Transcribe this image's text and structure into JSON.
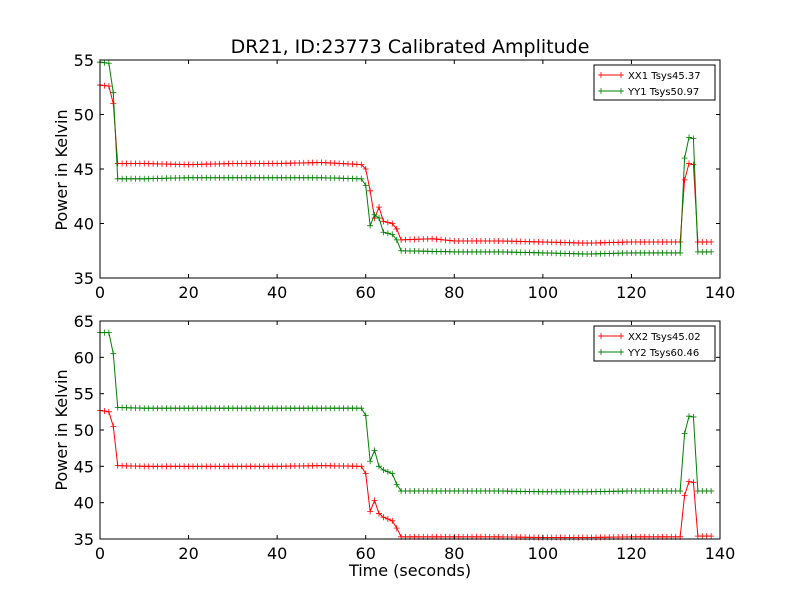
{
  "chart_data": [
    {
      "type": "line",
      "title": "DR21, ID:23773 Calibrated Amplitude",
      "xlabel": "",
      "ylabel": "Power in Kelvin",
      "xlim": [
        0,
        140
      ],
      "ylim": [
        35,
        55
      ],
      "xticks": [
        0,
        20,
        40,
        60,
        80,
        100,
        120,
        140
      ],
      "yticks": [
        35,
        40,
        45,
        50,
        55
      ],
      "grid": false,
      "legend_position": "top-right",
      "series": [
        {
          "name": "XX1 Tsys45.37",
          "color": "#ff0000",
          "points": [
            [
              0,
              52.7
            ],
            [
              2,
              52.6
            ],
            [
              3,
              51
            ],
            [
              4,
              45.5
            ],
            [
              10,
              45.5
            ],
            [
              20,
              45.4
            ],
            [
              30,
              45.5
            ],
            [
              40,
              45.5
            ],
            [
              50,
              45.6
            ],
            [
              59,
              45.4
            ],
            [
              60,
              45
            ],
            [
              61,
              43
            ],
            [
              62,
              40.5
            ],
            [
              63,
              41.5
            ],
            [
              64,
              40.2
            ],
            [
              66,
              40
            ],
            [
              67,
              39.5
            ],
            [
              68,
              38.5
            ],
            [
              75,
              38.6
            ],
            [
              80,
              38.4
            ],
            [
              90,
              38.4
            ],
            [
              100,
              38.3
            ],
            [
              110,
              38.2
            ],
            [
              120,
              38.3
            ],
            [
              131,
              38.3
            ],
            [
              132,
              44
            ],
            [
              133,
              45.5
            ],
            [
              134,
              45.4
            ],
            [
              135,
              38.3
            ],
            [
              138,
              38.3
            ]
          ]
        },
        {
          "name": "YY1 Tsys50.97",
          "color": "#008000",
          "points": [
            [
              0,
              54.8
            ],
            [
              2,
              54.7
            ],
            [
              3,
              52
            ],
            [
              4,
              44.1
            ],
            [
              10,
              44.1
            ],
            [
              20,
              44.2
            ],
            [
              30,
              44.2
            ],
            [
              40,
              44.2
            ],
            [
              50,
              44.2
            ],
            [
              59,
              44.1
            ],
            [
              60,
              43.5
            ],
            [
              61,
              39.8
            ],
            [
              62,
              40.8
            ],
            [
              63,
              40.5
            ],
            [
              64,
              39.2
            ],
            [
              66,
              39
            ],
            [
              67,
              38.5
            ],
            [
              68,
              37.5
            ],
            [
              80,
              37.4
            ],
            [
              90,
              37.4
            ],
            [
              100,
              37.3
            ],
            [
              110,
              37.2
            ],
            [
              120,
              37.3
            ],
            [
              131,
              37.3
            ],
            [
              132,
              46
            ],
            [
              133,
              47.9
            ],
            [
              134,
              47.8
            ],
            [
              135,
              37.4
            ],
            [
              138,
              37.4
            ]
          ]
        }
      ]
    },
    {
      "type": "line",
      "title": "",
      "xlabel": "Time (seconds)",
      "ylabel": "Power in Kelvin",
      "xlim": [
        0,
        140
      ],
      "ylim": [
        35,
        65
      ],
      "xticks": [
        0,
        20,
        40,
        60,
        80,
        100,
        120,
        140
      ],
      "yticks": [
        35,
        40,
        45,
        50,
        55,
        60,
        65
      ],
      "grid": false,
      "legend_position": "top-right",
      "series": [
        {
          "name": "XX2 Tsys45.02",
          "color": "#ff0000",
          "points": [
            [
              0,
              52.7
            ],
            [
              2,
              52.5
            ],
            [
              3,
              50.5
            ],
            [
              4,
              45.1
            ],
            [
              10,
              45
            ],
            [
              20,
              45
            ],
            [
              30,
              45
            ],
            [
              40,
              45
            ],
            [
              50,
              45.1
            ],
            [
              59,
              45
            ],
            [
              60,
              44
            ],
            [
              61,
              38.8
            ],
            [
              62,
              40.3
            ],
            [
              63,
              38.5
            ],
            [
              64,
              38
            ],
            [
              66,
              37.5
            ],
            [
              67,
              36.5
            ],
            [
              68,
              35.3
            ],
            [
              80,
              35.3
            ],
            [
              90,
              35.3
            ],
            [
              100,
              35.2
            ],
            [
              110,
              35.2
            ],
            [
              120,
              35.3
            ],
            [
              131,
              35.3
            ],
            [
              132,
              41
            ],
            [
              133,
              42.9
            ],
            [
              134,
              42.8
            ],
            [
              135,
              35.4
            ],
            [
              138,
              35.4
            ]
          ]
        },
        {
          "name": "YY2 Tsys60.46",
          "color": "#008000",
          "points": [
            [
              0,
              63.4
            ],
            [
              2,
              63.4
            ],
            [
              3,
              60.5
            ],
            [
              4,
              53.1
            ],
            [
              10,
              53
            ],
            [
              20,
              53
            ],
            [
              30,
              53
            ],
            [
              40,
              53
            ],
            [
              50,
              53
            ],
            [
              59,
              53
            ],
            [
              60,
              52
            ],
            [
              61,
              45.7
            ],
            [
              62,
              47.2
            ],
            [
              63,
              45
            ],
            [
              64,
              44.5
            ],
            [
              66,
              44
            ],
            [
              67,
              42.5
            ],
            [
              68,
              41.6
            ],
            [
              80,
              41.6
            ],
            [
              90,
              41.6
            ],
            [
              100,
              41.5
            ],
            [
              110,
              41.5
            ],
            [
              120,
              41.6
            ],
            [
              131,
              41.6
            ],
            [
              132,
              49.5
            ],
            [
              133,
              51.9
            ],
            [
              134,
              51.8
            ],
            [
              135,
              41.6
            ],
            [
              138,
              41.6
            ]
          ]
        }
      ]
    }
  ]
}
